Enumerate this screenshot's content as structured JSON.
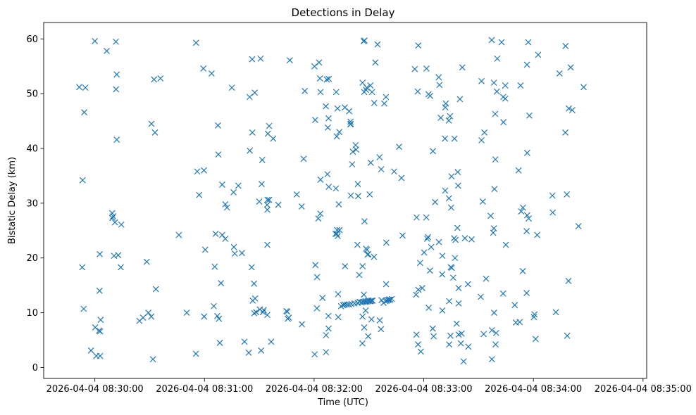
{
  "chart_data": {
    "type": "scatter",
    "title": "Detections in Delay",
    "xlabel": "Time (UTC)",
    "ylabel": "Bistatic Delay (km)",
    "marker": "x",
    "color": "#1f77b4",
    "grid": false,
    "xlim_seconds": [
      -28,
      302
    ],
    "ylim": [
      -2,
      63
    ],
    "x_unit": "seconds after 2026-04-04 08:30:00",
    "x_ticks": [
      {
        "value": 0,
        "label": "2026-04-04 08:30:00"
      },
      {
        "value": 60,
        "label": "2026-04-04 08:31:00"
      },
      {
        "value": 120,
        "label": "2026-04-04 08:32:00"
      },
      {
        "value": 180,
        "label": "2026-04-04 08:33:00"
      },
      {
        "value": 240,
        "label": "2026-04-04 08:34:00"
      },
      {
        "value": 300,
        "label": "2026-04-04 08:35:00"
      }
    ],
    "y_ticks": [
      {
        "value": 0,
        "label": "0"
      },
      {
        "value": 10,
        "label": "10"
      },
      {
        "value": 20,
        "label": "20"
      },
      {
        "value": 30,
        "label": "30"
      },
      {
        "value": 40,
        "label": "40"
      },
      {
        "value": 50,
        "label": "50"
      },
      {
        "value": 60,
        "label": "60"
      }
    ],
    "points": [
      [
        -8.5,
        51.2
      ],
      [
        -5.2,
        51.1
      ],
      [
        0,
        59.6
      ],
      [
        6.5,
        57.8
      ],
      [
        11.5,
        59.5
      ],
      [
        12,
        53.5
      ],
      [
        11.6,
        50.8
      ],
      [
        -5.8,
        46.6
      ],
      [
        12,
        41.6
      ],
      [
        -6.7,
        34.2
      ],
      [
        9.5,
        28.2
      ],
      [
        10,
        27.6
      ],
      [
        9.6,
        27.3
      ],
      [
        11,
        26.5
      ],
      [
        14.5,
        26.1
      ],
      [
        2.7,
        20.7
      ],
      [
        10.5,
        20.4
      ],
      [
        12.8,
        20.5
      ],
      [
        -6.9,
        18.3
      ],
      [
        14.2,
        18.3
      ],
      [
        2.6,
        14
      ],
      [
        -6.1,
        10.7
      ],
      [
        3.2,
        8.7
      ],
      [
        0.2,
        7.3
      ],
      [
        2.3,
        6.7
      ],
      [
        2.9,
        6.6
      ],
      [
        -2.1,
        3.1
      ],
      [
        0.8,
        2.1
      ],
      [
        2.9,
        2.1
      ],
      [
        31,
        44.5
      ],
      [
        32.9,
        42.9
      ],
      [
        32.4,
        52.6
      ],
      [
        35.9,
        52.8
      ],
      [
        55.4,
        59.3
      ],
      [
        59.4,
        54.6
      ],
      [
        63.9,
        53.7
      ],
      [
        46,
        24.2
      ],
      [
        33.4,
        14.3
      ],
      [
        28.4,
        19.3
      ],
      [
        24.4,
        8.5
      ],
      [
        26.4,
        9.1
      ],
      [
        29.3,
        10
      ],
      [
        30.9,
        9.3
      ],
      [
        31.8,
        1.5
      ],
      [
        50.3,
        10
      ],
      [
        55.3,
        2.5
      ],
      [
        56,
        35.8
      ],
      [
        59.7,
        36
      ],
      [
        57.1,
        31.5
      ],
      [
        60.4,
        21.5
      ],
      [
        59.8,
        9.3
      ],
      [
        67.4,
        44.2
      ],
      [
        67.6,
        38.9
      ],
      [
        69.7,
        33.4
      ],
      [
        71.4,
        29.8
      ],
      [
        72.3,
        29.2
      ],
      [
        66.1,
        24.4
      ],
      [
        69.7,
        24.2
      ],
      [
        71.4,
        23.5
      ],
      [
        65.6,
        18.4
      ],
      [
        65.1,
        11.2
      ],
      [
        67,
        9.4
      ],
      [
        67.9,
        8.9
      ],
      [
        69,
        15.4
      ],
      [
        68.4,
        4.5
      ],
      [
        75,
        51.1
      ],
      [
        75.9,
        32
      ],
      [
        78.5,
        33.2
      ],
      [
        76.1,
        22
      ],
      [
        76.6,
        20.8
      ],
      [
        80.5,
        20.9
      ],
      [
        86.1,
        56.3
      ],
      [
        90.7,
        56.4
      ],
      [
        84.7,
        49.4
      ],
      [
        87.5,
        50.2
      ],
      [
        84.8,
        39.6
      ],
      [
        86.2,
        42.9
      ],
      [
        90,
        30.3
      ],
      [
        91.3,
        33.5
      ],
      [
        91.6,
        37.9
      ],
      [
        94.7,
        42.7
      ],
      [
        95.4,
        44.1
      ],
      [
        97.6,
        41.8
      ],
      [
        94.5,
        30.6
      ],
      [
        95.4,
        30.6
      ],
      [
        94.3,
        29.7
      ],
      [
        94.4,
        28.8
      ],
      [
        94.4,
        22.4
      ],
      [
        85.8,
        18.3
      ],
      [
        87.1,
        15.3
      ],
      [
        86.4,
        12.2
      ],
      [
        87.7,
        12.6
      ],
      [
        87.2,
        9.9
      ],
      [
        88.3,
        10.1
      ],
      [
        90.3,
        10.6
      ],
      [
        92,
        10.1
      ],
      [
        92.4,
        10.5
      ],
      [
        94.4,
        9.6
      ],
      [
        81.9,
        4.7
      ],
      [
        84.2,
        2.7
      ],
      [
        91,
        3.1
      ],
      [
        96.5,
        4.7
      ],
      [
        100.4,
        29.7
      ],
      [
        104.8,
        10.3
      ],
      [
        105.3,
        10.2
      ],
      [
        106.1,
        9.1
      ],
      [
        105.6,
        8.9
      ],
      [
        106.7,
        56.1
      ],
      [
        110.5,
        31.6
      ],
      [
        113.2,
        29.4
      ],
      [
        113.3,
        7.9
      ],
      [
        114.3,
        38.1
      ],
      [
        114.9,
        50.5
      ],
      [
        120.2,
        55
      ],
      [
        122.7,
        55.7
      ],
      [
        123.2,
        52.8
      ],
      [
        120.6,
        45.2
      ],
      [
        123.5,
        50.3
      ],
      [
        126.9,
        52.6
      ],
      [
        128,
        52.7
      ],
      [
        132.1,
        50.3
      ],
      [
        126.4,
        47.7
      ],
      [
        132.8,
        47.3
      ],
      [
        127.9,
        45.5
      ],
      [
        127.5,
        43.8
      ],
      [
        132.4,
        42.2
      ],
      [
        133.8,
        43
      ],
      [
        123.5,
        34.3
      ],
      [
        127.3,
        35.3
      ],
      [
        128,
        33
      ],
      [
        131.9,
        32.7
      ],
      [
        122.3,
        27.2
      ],
      [
        123.4,
        28.1
      ],
      [
        133.5,
        29.8
      ],
      [
        132.6,
        25.1
      ],
      [
        133.9,
        25.1
      ],
      [
        132.9,
        24
      ],
      [
        132.4,
        24.4
      ],
      [
        131.7,
        24.4
      ],
      [
        120.7,
        18.7
      ],
      [
        121.6,
        16.5
      ],
      [
        121.5,
        10.8
      ],
      [
        124.6,
        12.7
      ],
      [
        126.5,
        2.8
      ],
      [
        127.8,
        9.4
      ],
      [
        127.9,
        7.1
      ],
      [
        126.5,
        5.9
      ],
      [
        120.3,
        2.4
      ],
      [
        133.1,
        13.4
      ],
      [
        133.2,
        9.2
      ],
      [
        136.8,
        47.5
      ],
      [
        139.2,
        46.8
      ],
      [
        139.9,
        44.9
      ],
      [
        140,
        44.5
      ],
      [
        139.9,
        44.4
      ],
      [
        141.2,
        39.4
      ],
      [
        142.7,
        40.6
      ],
      [
        143,
        39.8
      ],
      [
        140.8,
        37.1
      ],
      [
        143.9,
        33.5
      ],
      [
        140.1,
        31.4
      ],
      [
        144.1,
        31.3
      ],
      [
        144.7,
        16.9
      ],
      [
        146.5,
        18.5
      ],
      [
        143.7,
        22.4
      ],
      [
        147.6,
        26.7
      ],
      [
        148.4,
        21.7
      ],
      [
        148.9,
        21.5
      ],
      [
        149.3,
        20.6
      ],
      [
        149.6,
        20.7
      ],
      [
        148.2,
        10.4
      ],
      [
        147.2,
        13.3
      ],
      [
        146.5,
        9.3
      ],
      [
        147.4,
        7.3
      ],
      [
        149.6,
        5.7
      ],
      [
        146.4,
        4.4
      ],
      [
        152.8,
        20.2
      ],
      [
        146.5,
        52
      ],
      [
        147.4,
        50.3
      ],
      [
        148.8,
        51.1
      ],
      [
        150.8,
        51.5
      ],
      [
        148.4,
        50.7
      ],
      [
        151.7,
        50.3
      ],
      [
        152.9,
        48.3
      ],
      [
        153.5,
        55.7
      ],
      [
        147.1,
        59.6
      ],
      [
        147.6,
        59.7
      ],
      [
        154.7,
        59
      ],
      [
        155.8,
        38.4
      ],
      [
        156.7,
        36.2
      ],
      [
        150.4,
        31.6
      ],
      [
        151,
        37.4
      ],
      [
        151.4,
        8.8
      ],
      [
        136.9,
        18.5
      ],
      [
        134.7,
        11.2
      ],
      [
        135.9,
        11.4
      ],
      [
        136.7,
        11.5
      ],
      [
        137.9,
        11.5
      ],
      [
        139,
        11.5
      ],
      [
        140.4,
        11.6
      ],
      [
        142.1,
        11.7
      ],
      [
        143.8,
        11.8
      ],
      [
        144.9,
        12
      ],
      [
        146,
        11.9
      ],
      [
        146.8,
        12
      ],
      [
        147.7,
        12
      ],
      [
        148.2,
        12.1
      ],
      [
        148.7,
        12
      ],
      [
        149.3,
        12.1
      ],
      [
        149.8,
        12.2
      ],
      [
        150.4,
        12.1
      ],
      [
        150.9,
        12.1
      ],
      [
        151.4,
        12.2
      ],
      [
        152,
        12.2
      ],
      [
        155.9,
        8.6
      ],
      [
        156.6,
        7
      ],
      [
        156.9,
        12.3
      ],
      [
        158,
        11.8
      ],
      [
        159.1,
        12.1
      ],
      [
        159.7,
        12.2
      ],
      [
        160.4,
        12.3
      ],
      [
        160.9,
        12.4
      ],
      [
        161.6,
        12.4
      ],
      [
        162.5,
        12.5
      ],
      [
        159.4,
        15.2
      ],
      [
        159.5,
        22.8
      ],
      [
        159.3,
        49.4
      ],
      [
        158.4,
        48.2
      ],
      [
        163.8,
        35.8
      ],
      [
        166.5,
        40.3
      ],
      [
        167.8,
        34.6
      ],
      [
        168.4,
        24.1
      ],
      [
        175.1,
        54.5
      ],
      [
        176.7,
        50.4
      ],
      [
        177,
        58.8
      ],
      [
        181.5,
        54.6
      ],
      [
        182.6,
        49.9
      ],
      [
        183.5,
        49.6
      ],
      [
        176.1,
        27.4
      ],
      [
        181.4,
        27.4
      ],
      [
        185,
        39.5
      ],
      [
        186.2,
        30.2
      ],
      [
        184.1,
        22
      ],
      [
        182.3,
        23.8
      ],
      [
        181.9,
        23.5
      ],
      [
        180.2,
        21
      ],
      [
        177,
        14.2
      ],
      [
        178,
        19.1
      ],
      [
        175.8,
        13.3
      ],
      [
        179.2,
        14.5
      ],
      [
        182.7,
        10.9
      ],
      [
        183.4,
        17.7
      ],
      [
        184.9,
        7.1
      ],
      [
        185.4,
        5.7
      ],
      [
        178.4,
        2.9
      ],
      [
        176.9,
        4.2
      ],
      [
        176,
        6
      ],
      [
        188.2,
        53
      ],
      [
        188.6,
        51.6
      ],
      [
        191.8,
        47.5
      ],
      [
        192.1,
        48.2
      ],
      [
        189.3,
        45.6
      ],
      [
        191.6,
        41.8
      ],
      [
        193.7,
        45.1
      ],
      [
        194.4,
        45.9
      ],
      [
        195.2,
        34.9
      ],
      [
        196.8,
        41.8
      ],
      [
        190.1,
        17
      ],
      [
        188.3,
        22.9
      ],
      [
        190.2,
        20.4
      ],
      [
        191.7,
        32.3
      ],
      [
        193.8,
        30.9
      ],
      [
        195,
        29.2
      ],
      [
        194.8,
        18.3
      ],
      [
        195.3,
        18.2
      ],
      [
        193.9,
        12.1
      ],
      [
        196.1,
        16.4
      ],
      [
        197.1,
        20
      ],
      [
        197.4,
        23.3
      ],
      [
        196.6,
        23.6
      ],
      [
        198.6,
        35.7
      ],
      [
        198.8,
        33.2
      ],
      [
        198.4,
        25.5
      ],
      [
        199.8,
        49
      ],
      [
        199.1,
        14.5
      ],
      [
        199.1,
        11.7
      ],
      [
        198,
        8
      ],
      [
        199.1,
        6
      ],
      [
        200.3,
        4.4
      ],
      [
        200.7,
        6.2
      ],
      [
        190.2,
        10.4
      ],
      [
        193.9,
        4.2
      ],
      [
        194.6,
        5.8
      ],
      [
        201.1,
        54.8
      ],
      [
        202.5,
        23.6
      ],
      [
        204.2,
        15.2
      ],
      [
        204.4,
        3.8
      ],
      [
        206.2,
        23.4
      ],
      [
        201.8,
        1.1
      ],
      [
        211.6,
        52.3
      ],
      [
        211.6,
        41.5
      ],
      [
        213.2,
        42.9
      ],
      [
        212.3,
        30.3
      ],
      [
        214.1,
        16.2
      ],
      [
        211.2,
        12.9
      ],
      [
        212.8,
        6.1
      ],
      [
        217.2,
        59.8
      ],
      [
        218.4,
        52
      ],
      [
        220.2,
        56.4
      ],
      [
        219.1,
        46.3
      ],
      [
        220,
        50.4
      ],
      [
        222.6,
        59.4
      ],
      [
        223.5,
        49.4
      ],
      [
        223.6,
        44.8
      ],
      [
        224.6,
        49.1
      ],
      [
        224.6,
        51.5
      ],
      [
        219.2,
        38
      ],
      [
        218.7,
        32.6
      ],
      [
        216.6,
        27.7
      ],
      [
        218.4,
        25.4
      ],
      [
        218,
        24.6
      ],
      [
        223.4,
        13.5
      ],
      [
        224.9,
        22.4
      ],
      [
        218.5,
        10
      ],
      [
        217.3,
        6.8
      ],
      [
        219.6,
        6.3
      ],
      [
        217.3,
        1.5
      ],
      [
        219.3,
        4.2
      ],
      [
        231.9,
        36
      ],
      [
        233,
        51.5
      ],
      [
        234.3,
        29.2
      ],
      [
        233.3,
        28.5
      ],
      [
        234.2,
        17.6
      ],
      [
        236.5,
        55.3
      ],
      [
        237.2,
        59.4
      ],
      [
        237.8,
        46
      ],
      [
        236.6,
        39.2
      ],
      [
        236.6,
        27.8
      ],
      [
        237.4,
        27.2
      ],
      [
        236.3,
        24.9
      ],
      [
        236.3,
        13.6
      ],
      [
        229.8,
        11.4
      ],
      [
        230.4,
        8.2
      ],
      [
        232.5,
        8.3
      ],
      [
        240.6,
        9.7
      ],
      [
        240.3,
        9.2
      ],
      [
        241.2,
        5.2
      ],
      [
        242.1,
        24.2
      ],
      [
        242.6,
        57.1
      ],
      [
        250.4,
        31.4
      ],
      [
        250.6,
        28.3
      ],
      [
        252.3,
        10.1
      ],
      [
        254.3,
        53.7
      ],
      [
        257.6,
        58.7
      ],
      [
        257.5,
        42.9
      ],
      [
        258.3,
        31.6
      ],
      [
        258.5,
        5.8
      ],
      [
        259.4,
        47.3
      ],
      [
        260.4,
        54.8
      ],
      [
        261.3,
        47
      ],
      [
        259.2,
        15.8
      ],
      [
        264.7,
        25.8
      ],
      [
        267.5,
        51.2
      ]
    ]
  }
}
